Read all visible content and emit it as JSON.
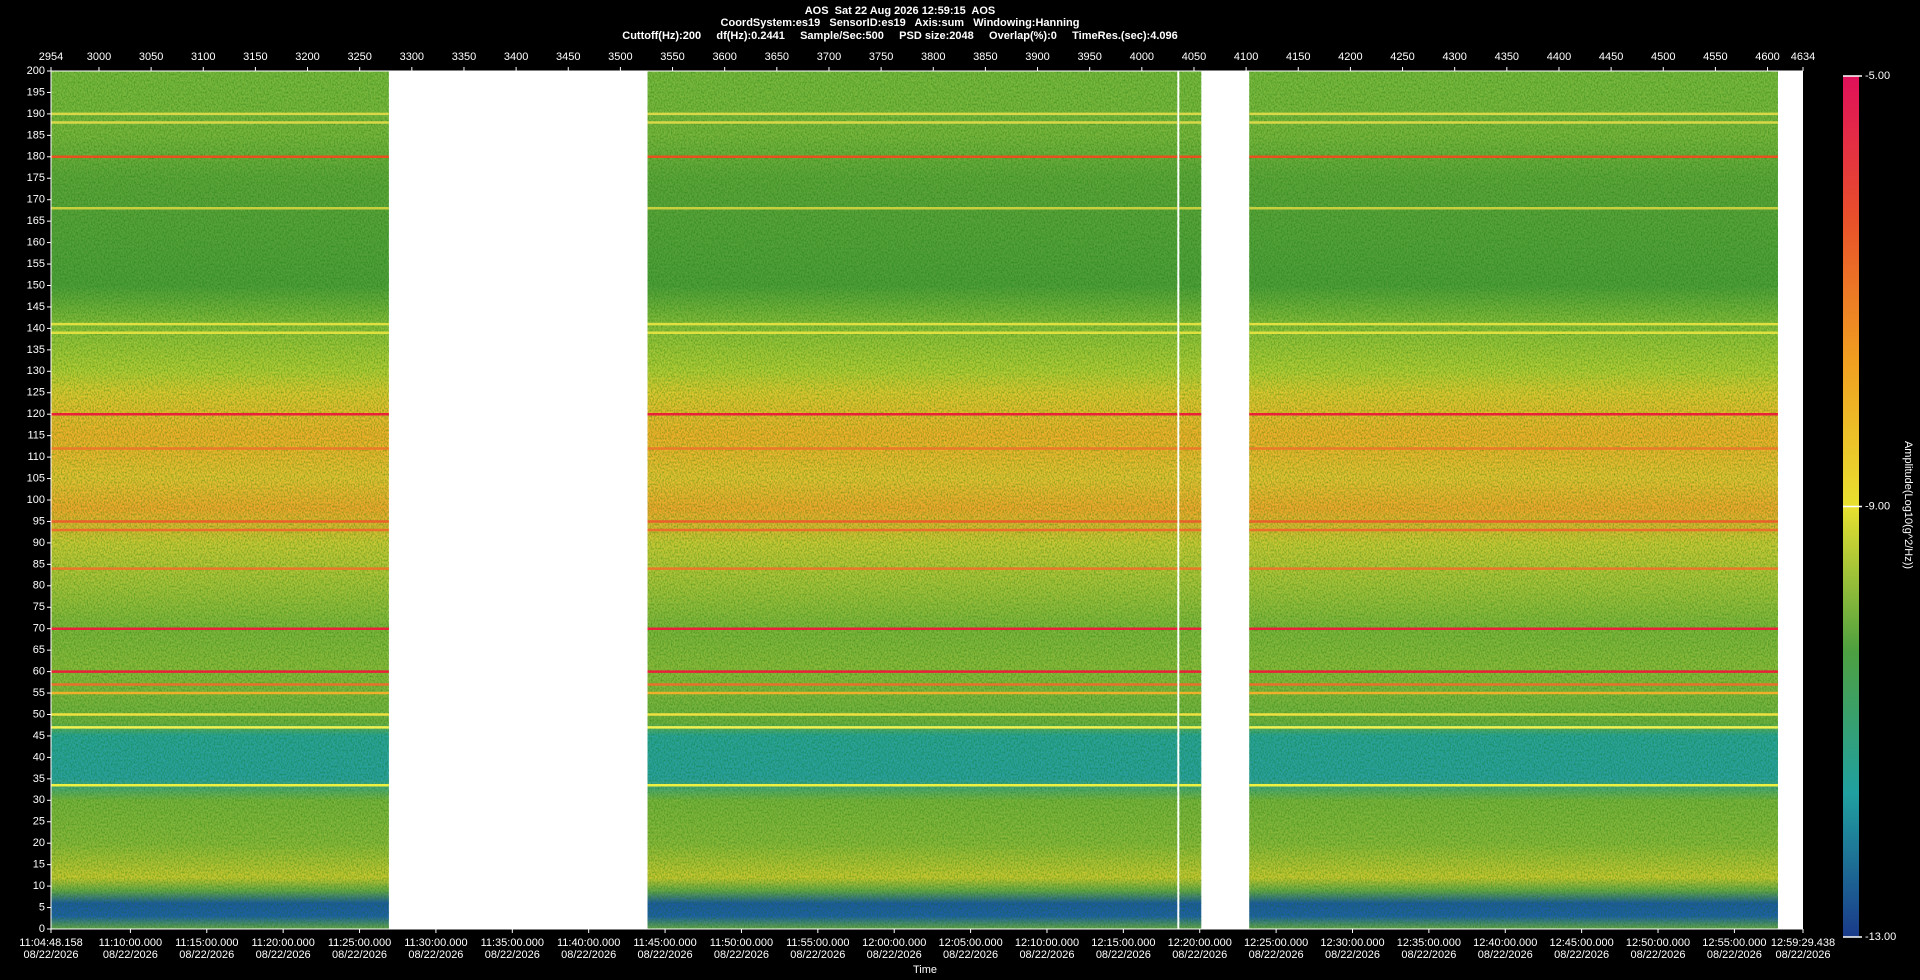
{
  "chart_data": {
    "type": "spectrogram",
    "title": "AOS  Sat 22 Aug 2026 12:59:15  AOS",
    "subtitle": [
      "CoordSystem:es19   SensorID:es19   Axis:sum   Windowing:Hanning",
      "Cuttoff(Hz):200     df(Hz):0.2441     Sample/Sec:500     PSD size:2048     Overlap(%):0     TimeRes.(sec):4.096"
    ],
    "xlabel": "Time",
    "x_sublabel": "08/22/2026",
    "xlim": [
      39888.158,
      46769.438
    ],
    "xticks": [
      {
        "value": 39888.158,
        "label": "11:04:48.158"
      },
      {
        "value": 40200,
        "label": "11:10:00.000"
      },
      {
        "value": 40500,
        "label": "11:15:00.000"
      },
      {
        "value": 40800,
        "label": "11:20:00.000"
      },
      {
        "value": 41100,
        "label": "11:25:00.000"
      },
      {
        "value": 41400,
        "label": "11:30:00.000"
      },
      {
        "value": 41700,
        "label": "11:35:00.000"
      },
      {
        "value": 42000,
        "label": "11:40:00.000"
      },
      {
        "value": 42300,
        "label": "11:45:00.000"
      },
      {
        "value": 42600,
        "label": "11:50:00.000"
      },
      {
        "value": 42900,
        "label": "11:55:00.000"
      },
      {
        "value": 43200,
        "label": "12:00:00.000"
      },
      {
        "value": 43500,
        "label": "12:05:00.000"
      },
      {
        "value": 43800,
        "label": "12:10:00.000"
      },
      {
        "value": 44100,
        "label": "12:15:00.000"
      },
      {
        "value": 44400,
        "label": "12:20:00.000"
      },
      {
        "value": 44700,
        "label": "12:25:00.000"
      },
      {
        "value": 45000,
        "label": "12:30:00.000"
      },
      {
        "value": 45300,
        "label": "12:35:00.000"
      },
      {
        "value": 45600,
        "label": "12:40:00.000"
      },
      {
        "value": 45900,
        "label": "12:45:00.000"
      },
      {
        "value": 46200,
        "label": "12:50:00.000"
      },
      {
        "value": 46500,
        "label": "12:55:00.000"
      },
      {
        "value": 46769.438,
        "label": "12:59:29.438"
      }
    ],
    "x2lim": [
      2954,
      4634
    ],
    "x2ticks": [
      2954,
      3000,
      3050,
      3100,
      3150,
      3200,
      3250,
      3300,
      3350,
      3400,
      3450,
      3500,
      3550,
      3600,
      3650,
      3700,
      3750,
      3800,
      3850,
      3900,
      3950,
      4000,
      4050,
      4100,
      4150,
      4200,
      4250,
      4300,
      4350,
      4400,
      4450,
      4500,
      4550,
      4600,
      4634
    ],
    "ylim": [
      0,
      200
    ],
    "yticks": [
      0,
      5,
      10,
      15,
      20,
      25,
      30,
      35,
      40,
      45,
      50,
      55,
      60,
      65,
      70,
      75,
      80,
      85,
      90,
      95,
      100,
      105,
      110,
      115,
      120,
      125,
      130,
      135,
      140,
      145,
      150,
      155,
      160,
      165,
      170,
      175,
      180,
      185,
      190,
      195,
      200
    ],
    "segments": [
      [
        2954,
        3278
      ],
      [
        3526,
        4034
      ],
      [
        4036,
        4057
      ],
      [
        4103,
        4610
      ]
    ],
    "spectrum_profile": [
      {
        "freq": 200,
        "color": "#7ab83e"
      },
      {
        "freq": 185,
        "color": "#79b53c"
      },
      {
        "freq": 175,
        "color": "#5ea53a"
      },
      {
        "freq": 150,
        "color": "#4f9e3a"
      },
      {
        "freq": 140,
        "color": "#8cbf3a"
      },
      {
        "freq": 130,
        "color": "#b4cc35"
      },
      {
        "freq": 125,
        "color": "#dcc830"
      },
      {
        "freq": 115,
        "color": "#f0b02a"
      },
      {
        "freq": 105,
        "color": "#e4c232"
      },
      {
        "freq": 98,
        "color": "#f0a82c"
      },
      {
        "freq": 90,
        "color": "#c9c935"
      },
      {
        "freq": 80,
        "color": "#a6c23a"
      },
      {
        "freq": 70,
        "color": "#7db53c"
      },
      {
        "freq": 60,
        "color": "#8cba3a"
      },
      {
        "freq": 48,
        "color": "#6fb040"
      },
      {
        "freq": 45,
        "color": "#2aa39a"
      },
      {
        "freq": 35,
        "color": "#2aa0a0"
      },
      {
        "freq": 30,
        "color": "#7ab33c"
      },
      {
        "freq": 20,
        "color": "#8ab83a"
      },
      {
        "freq": 12,
        "color": "#c8c830"
      },
      {
        "freq": 9,
        "color": "#6aa848"
      },
      {
        "freq": 6,
        "color": "#1f5aa0"
      },
      {
        "freq": 3,
        "color": "#2060a8"
      },
      {
        "freq": 0,
        "color": "#6aa848"
      }
    ],
    "tones": [
      {
        "freq": 190,
        "color": "#d8d848"
      },
      {
        "freq": 188,
        "color": "#d8d848"
      },
      {
        "freq": 180,
        "color": "#e8501e"
      },
      {
        "freq": 168,
        "color": "#c8d040"
      },
      {
        "freq": 141,
        "color": "#e0e040"
      },
      {
        "freq": 139,
        "color": "#e0e040"
      },
      {
        "freq": 120,
        "color": "#e8203a"
      },
      {
        "freq": 112,
        "color": "#e87a2a"
      },
      {
        "freq": 95,
        "color": "#e8602a"
      },
      {
        "freq": 93,
        "color": "#e8702a"
      },
      {
        "freq": 84,
        "color": "#e8782a"
      },
      {
        "freq": 70,
        "color": "#e8203a"
      },
      {
        "freq": 60,
        "color": "#e82038"
      },
      {
        "freq": 57,
        "color": "#e8702a"
      },
      {
        "freq": 55,
        "color": "#f0b02a"
      },
      {
        "freq": 50,
        "color": "#f0e040"
      },
      {
        "freq": 47,
        "color": "#f0f050"
      },
      {
        "freq": 33.5,
        "color": "#f0f040"
      }
    ],
    "clim": [
      -13,
      -5
    ],
    "cticks": [
      {
        "value": -13,
        "label": "-13.00"
      },
      {
        "value": -9,
        "label": "-9.00"
      },
      {
        "value": -5,
        "label": "-5.00"
      }
    ],
    "clabel": "Amplitude(Log10(g^2/Hz))",
    "colormap": [
      "#e0105a",
      "#e8502a",
      "#f0a020",
      "#e8e030",
      "#4ea040",
      "#20a0a0",
      "#1a3a8a"
    ]
  }
}
